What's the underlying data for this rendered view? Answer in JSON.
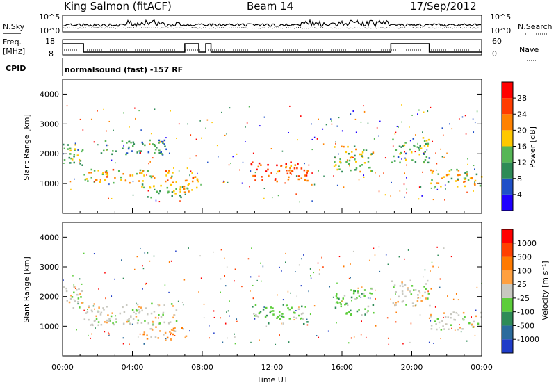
{
  "header": {
    "station": "King Salmon (fitACF)",
    "beam": "Beam 14",
    "date": "17/Sep/2012"
  },
  "top_panel": {
    "nsky_label": "N.Sky",
    "nsearch_label": "N.Search",
    "left_ticks": [
      "10^5",
      "10^0"
    ],
    "right_ticks": [
      "10^5",
      "10^0"
    ],
    "freq_label": "Freq.",
    "freq_unit": "[MHz]",
    "freq_ticks": [
      "18",
      "8"
    ],
    "nave_label": "Nave",
    "nave_ticks": [
      "60",
      "0"
    ],
    "cpid_label": "CPID",
    "cpid_text": "normalsound (fast) -157 RF"
  },
  "chart_data": [
    {
      "type": "heatmap",
      "name": "power",
      "ylabel": "Slant Range [km]",
      "xlabel": "",
      "xlim": [
        0,
        24
      ],
      "ylim": [
        0,
        4500
      ],
      "yticks": [
        "1000",
        "2000",
        "3000",
        "4000"
      ],
      "colorbar": {
        "label": "Power [dB]",
        "ticks": [
          "4",
          "8",
          "12",
          "16",
          "20",
          "24",
          "28"
        ],
        "colors": [
          "#1f00ff",
          "#1f50c8",
          "#2e8b57",
          "#56b656",
          "#ffc800",
          "#ff8200",
          "#ff3c00",
          "#ff0000"
        ]
      },
      "bands": [
        {
          "t0": 0.0,
          "t1": 1.2,
          "r0": 1600,
          "r1": 2400,
          "level": 0.35
        },
        {
          "t0": 1.2,
          "t1": 6.5,
          "r0": 1050,
          "r1": 1500,
          "level": 0.6
        },
        {
          "t0": 2.0,
          "t1": 6.0,
          "r0": 2000,
          "r1": 2500,
          "level": 0.3
        },
        {
          "t0": 4.5,
          "t1": 7.2,
          "r0": 550,
          "r1": 1000,
          "level": 0.45
        },
        {
          "t0": 6.8,
          "t1": 7.8,
          "r0": 700,
          "r1": 1400,
          "level": 0.7
        },
        {
          "t0": 10.7,
          "t1": 14.0,
          "r0": 1100,
          "r1": 1750,
          "level": 0.85
        },
        {
          "t0": 15.5,
          "t1": 17.8,
          "r0": 1400,
          "r1": 2300,
          "level": 0.5
        },
        {
          "t0": 18.8,
          "t1": 21.0,
          "r0": 1700,
          "r1": 2600,
          "level": 0.4
        },
        {
          "t0": 21.0,
          "t1": 24.0,
          "r0": 900,
          "r1": 1500,
          "level": 0.55
        }
      ]
    },
    {
      "type": "heatmap",
      "name": "velocity",
      "ylabel": "Slant Range [km]",
      "xlabel": "Time UT",
      "xlim": [
        0,
        24
      ],
      "ylim": [
        0,
        4500
      ],
      "yticks": [
        "1000",
        "2000",
        "3000",
        "4000"
      ],
      "xticks": [
        "00:00",
        "04:00",
        "08:00",
        "12:00",
        "16:00",
        "20:00",
        "00:00"
      ],
      "colorbar": {
        "label": "Velocity [m s⁻¹]",
        "ticks": [
          "1000",
          "500",
          "100",
          "25",
          "-25",
          "-100",
          "-500",
          "-1000"
        ],
        "colors": [
          "#1f3cc8",
          "#2b6b9c",
          "#2e8b57",
          "#5ccd3a",
          "#c8c8c0",
          "#ffa040",
          "#ff7a00",
          "#ff4000",
          "#ff0000"
        ]
      },
      "bands": [
        {
          "t0": 0.0,
          "t1": 1.2,
          "r0": 1600,
          "r1": 2400,
          "vel": "gray"
        },
        {
          "t0": 1.2,
          "t1": 6.5,
          "r0": 1050,
          "r1": 1800,
          "vel": "gray"
        },
        {
          "t0": 4.5,
          "t1": 7.2,
          "r0": 550,
          "r1": 1000,
          "vel": "orange"
        },
        {
          "t0": 10.7,
          "t1": 14.0,
          "r0": 1100,
          "r1": 1750,
          "vel": "green"
        },
        {
          "t0": 15.5,
          "t1": 17.8,
          "r0": 1400,
          "r1": 2300,
          "vel": "green"
        },
        {
          "t0": 18.8,
          "t1": 21.0,
          "r0": 1700,
          "r1": 2600,
          "vel": "gray"
        },
        {
          "t0": 21.0,
          "t1": 24.0,
          "r0": 900,
          "r1": 1500,
          "vel": "gray"
        }
      ]
    }
  ]
}
